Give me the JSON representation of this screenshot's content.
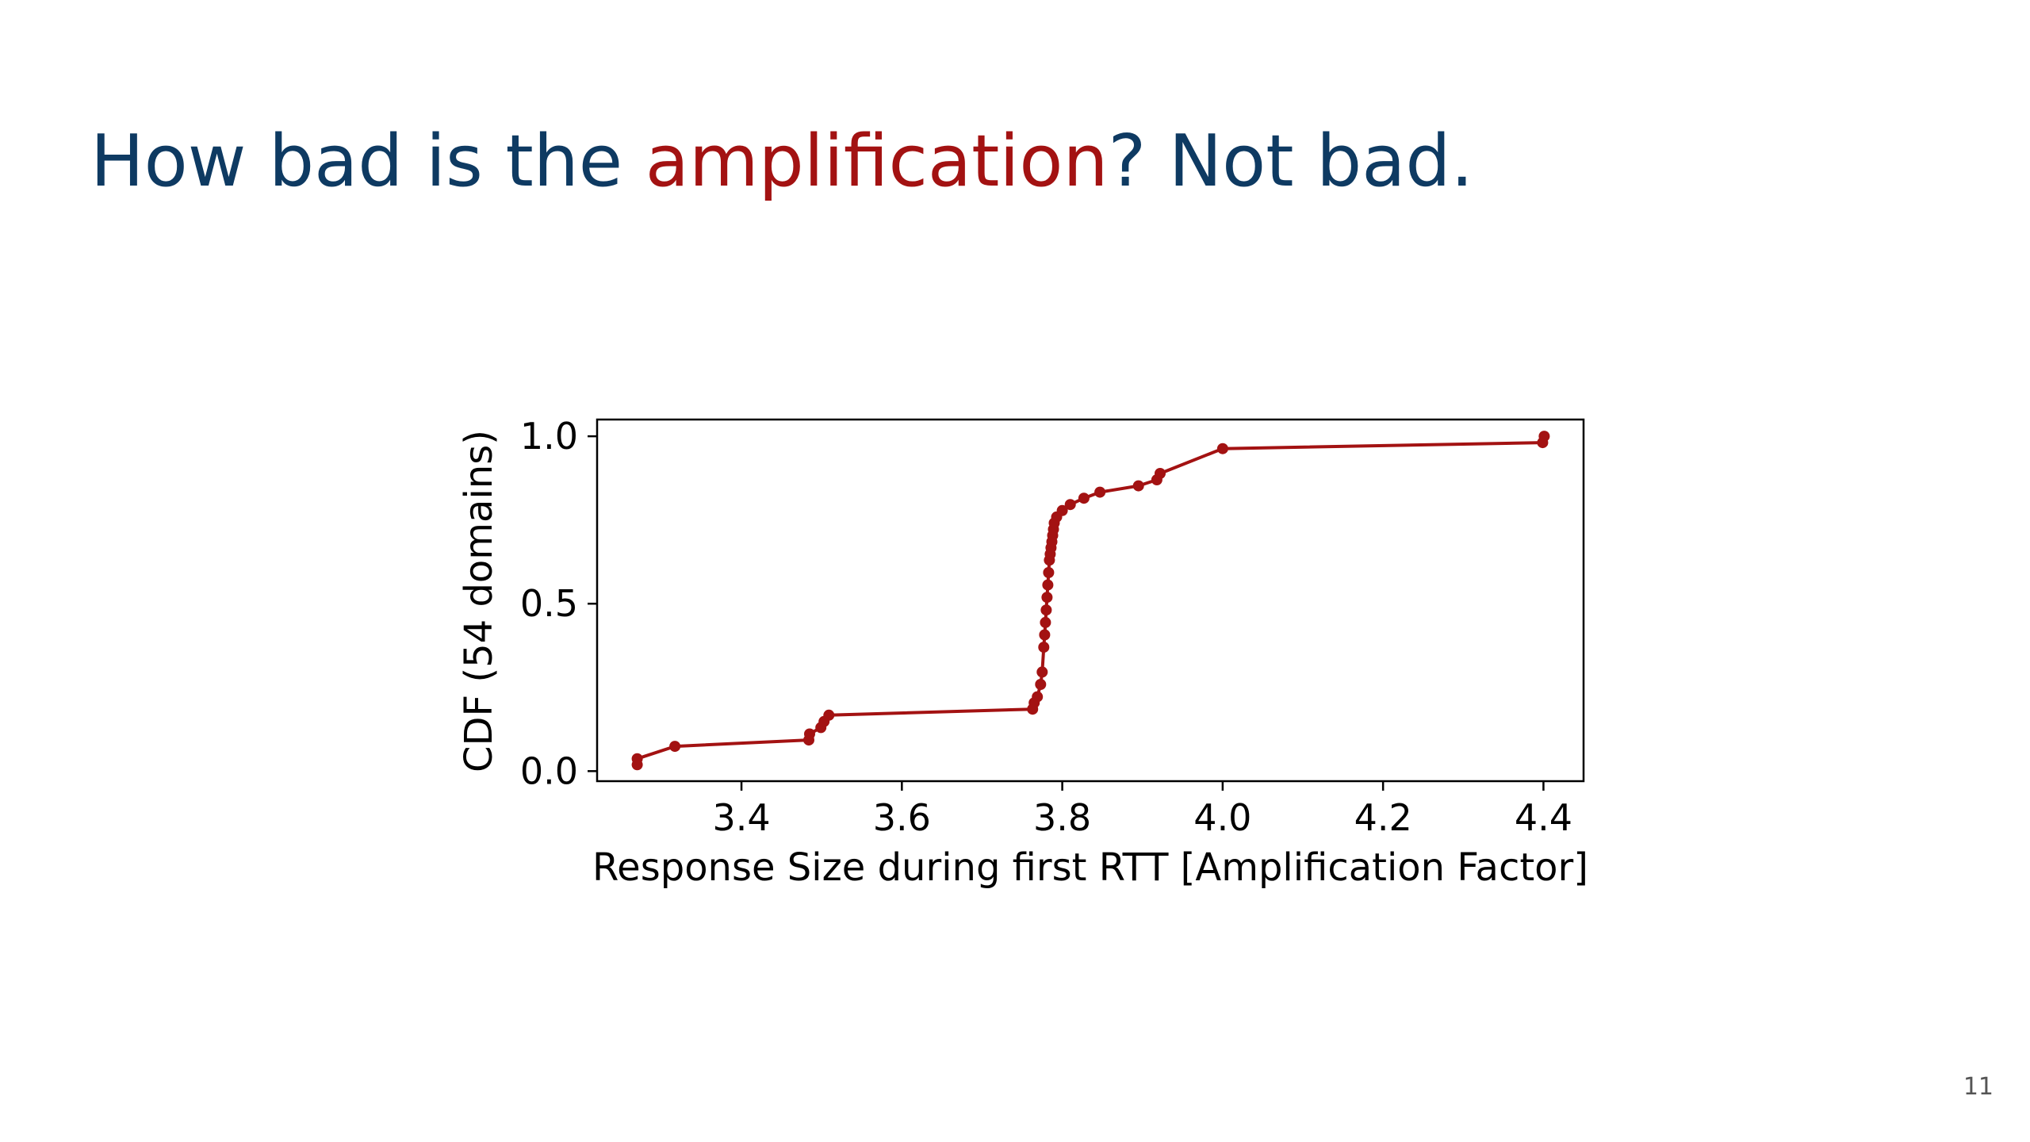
{
  "slide": {
    "title_part1": "How bad is the ",
    "title_highlight": "amplification",
    "title_part2": "? Not bad.",
    "page_number": "11"
  },
  "colors": {
    "title": "#0e3a62",
    "highlight": "#a31212",
    "series": "#a31212"
  },
  "chart_data": {
    "type": "line",
    "title": "",
    "xlabel": "Response Size during first RTT [Amplification Factor]",
    "ylabel": "CDF (54 domains)",
    "xlim": [
      3.22,
      4.45
    ],
    "ylim": [
      -0.03,
      1.05
    ],
    "xticks": [
      3.4,
      3.6,
      3.8,
      4.0,
      4.2,
      4.4
    ],
    "xtick_labels": [
      "3.4",
      "3.6",
      "3.8",
      "4.0",
      "4.2",
      "4.4"
    ],
    "yticks": [
      0.0,
      0.5,
      1.0
    ],
    "ytick_labels": [
      "0.0",
      "0.5",
      "1.0"
    ],
    "grid": false,
    "series": [
      {
        "name": "CDF",
        "marker": "circle",
        "x": [
          3.27,
          3.27,
          3.317,
          3.484,
          3.485,
          3.499,
          3.503,
          3.509,
          3.763,
          3.765,
          3.769,
          3.773,
          3.775,
          3.777,
          3.778,
          3.779,
          3.78,
          3.781,
          3.782,
          3.783,
          3.784,
          3.785,
          3.786,
          3.787,
          3.788,
          3.789,
          3.79,
          3.793,
          3.8,
          3.81,
          3.827,
          3.847,
          3.895,
          3.918,
          3.922,
          4.0,
          4.399,
          4.401
        ],
        "y": [
          0.019,
          0.037,
          0.074,
          0.093,
          0.111,
          0.13,
          0.148,
          0.167,
          0.185,
          0.204,
          0.222,
          0.259,
          0.296,
          0.37,
          0.407,
          0.444,
          0.481,
          0.519,
          0.556,
          0.593,
          0.63,
          0.648,
          0.667,
          0.685,
          0.704,
          0.722,
          0.741,
          0.759,
          0.778,
          0.796,
          0.815,
          0.833,
          0.852,
          0.87,
          0.889,
          0.963,
          0.981,
          1.0
        ]
      }
    ]
  }
}
